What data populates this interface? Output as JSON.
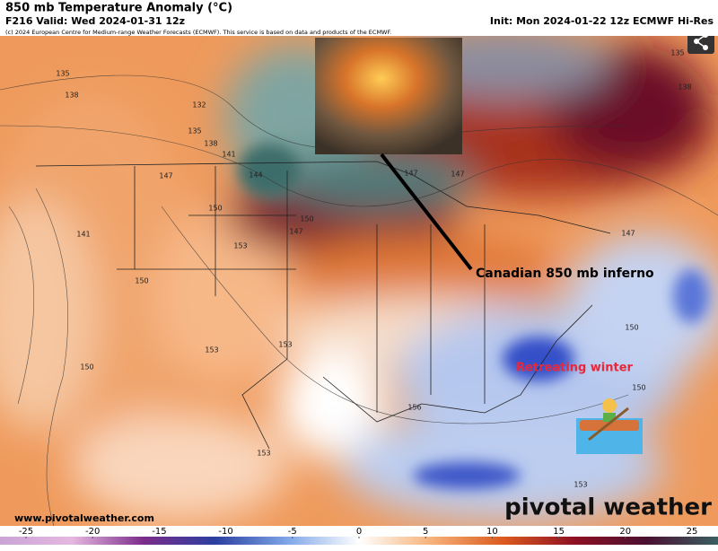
{
  "header": {
    "title": "850 mb Temperature Anomaly (°C)",
    "valid": "F216 Valid: Wed 2024-01-31 12z",
    "init": "Init: Mon 2024-01-22 12z ECMWF Hi-Res",
    "copyright": "(c) 2024 European Centre for Medium-range Weather Forecasts (ECMWF). This service is based on data and products of the ECMWF."
  },
  "annotations": [
    "Canadian 850 mb inferno",
    "Retreating winter"
  ],
  "contour_labels": [
    "135",
    "138",
    "132",
    "135",
    "138",
    "141",
    "144",
    "147",
    "150",
    "147",
    "150",
    "153",
    "141",
    "150",
    "153",
    "153",
    "150",
    "156",
    "153",
    "150",
    "150",
    "147",
    "147",
    "147",
    "135",
    "138",
    "153"
  ],
  "website": "www.pivotalweather.com",
  "brand": "pivotal weather",
  "colorbar": {
    "ticks": [
      -25,
      -20,
      -15,
      -10,
      -5,
      0,
      5,
      10,
      15,
      20,
      25
    ]
  }
}
